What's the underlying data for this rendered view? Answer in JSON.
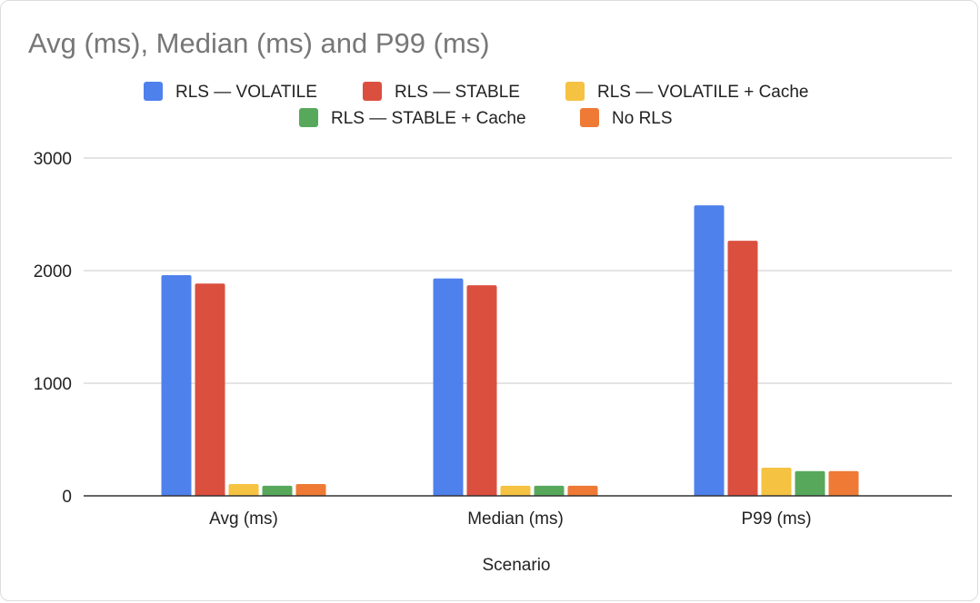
{
  "chart_data": {
    "type": "bar",
    "title": "Avg (ms), Median (ms) and P99 (ms)",
    "xlabel": "Scenario",
    "ylabel": "",
    "categories": [
      "Avg (ms)",
      "Median (ms)",
      "P99 (ms)"
    ],
    "ylim": [
      0,
      3000
    ],
    "yticks": [
      0,
      1000,
      2000,
      3000
    ],
    "grid": true,
    "legend_position": "top",
    "series": [
      {
        "name": "RLS — VOLATILE",
        "color": "#4f81ec",
        "values": [
          1960,
          1930,
          2580
        ]
      },
      {
        "name": "RLS — STABLE",
        "color": "#db4f3f",
        "values": [
          1885,
          1870,
          2265
        ]
      },
      {
        "name": "RLS — VOLATILE + Cache",
        "color": "#f5c242",
        "values": [
          105,
          90,
          250
        ]
      },
      {
        "name": "RLS — STABLE + Cache",
        "color": "#58a85c",
        "values": [
          90,
          90,
          220
        ]
      },
      {
        "name": "No RLS",
        "color": "#ee7a35",
        "values": [
          105,
          90,
          220
        ]
      }
    ],
    "colors": {
      "text": "#222222",
      "title": "#777777",
      "grid": "#d4d4d4",
      "axis": "#333333"
    }
  }
}
